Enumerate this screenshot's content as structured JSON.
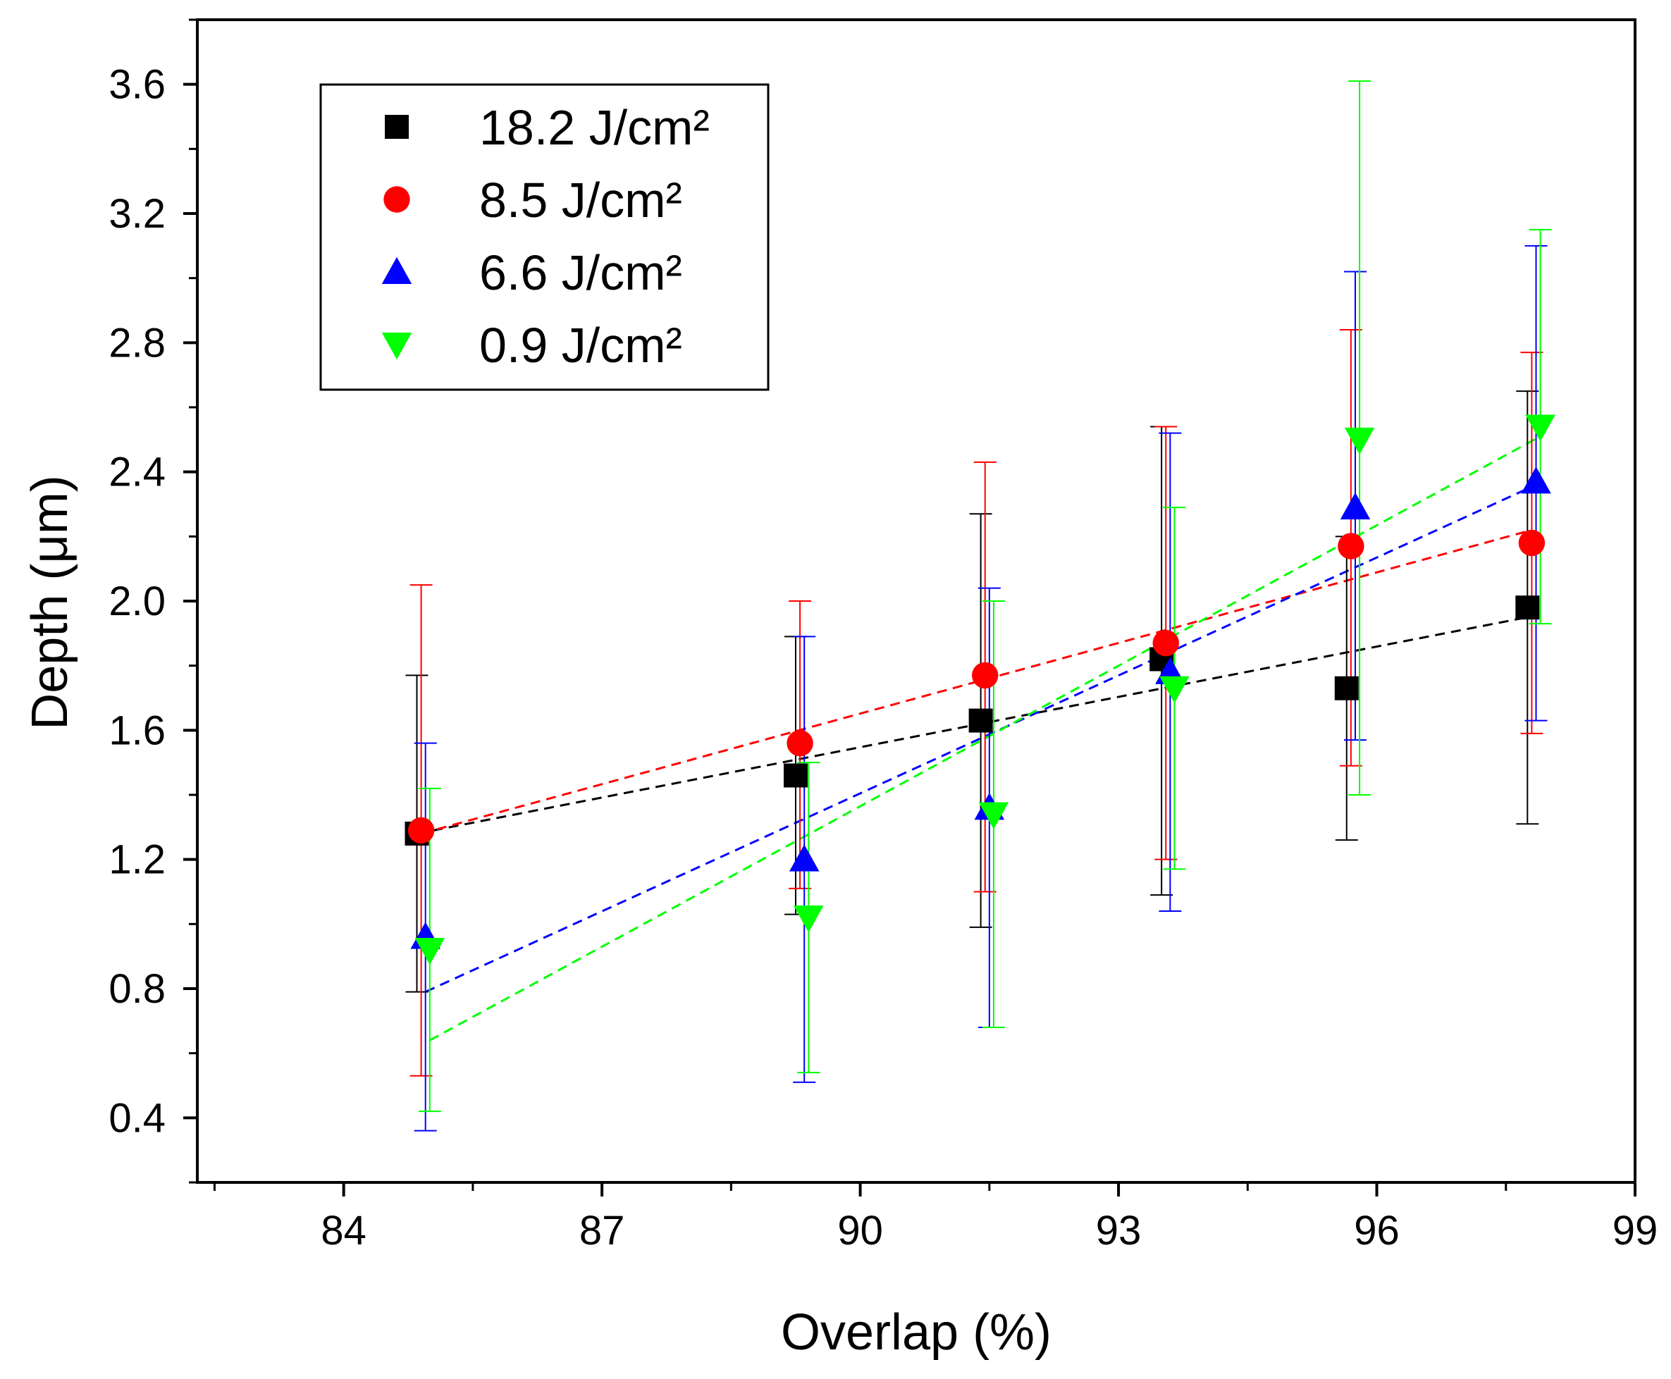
{
  "chart_data": {
    "type": "scatter",
    "title": "",
    "xlabel": "Overlap (%)",
    "ylabel": "Depth (μm)",
    "xlim": [
      82.3,
      99
    ],
    "ylim": [
      0.2,
      3.8
    ],
    "xticks": [
      "84",
      "87",
      "90",
      "93",
      "96",
      "99"
    ],
    "yticks": [
      "0.4",
      "0.8",
      "1.2",
      "1.6",
      "2.0",
      "2.4",
      "2.8",
      "3.2",
      "3.6"
    ],
    "legend_position": "top-left",
    "grid": false,
    "series": [
      {
        "name": "18.2 J/cm²",
        "marker": "square",
        "color": "#000000",
        "points": [
          {
            "x": 84.85,
            "y": 1.28,
            "err_low": 0.79,
            "err_high": 1.77
          },
          {
            "x": 89.25,
            "y": 1.46,
            "err_low": 1.03,
            "err_high": 1.89
          },
          {
            "x": 91.4,
            "y": 1.63,
            "err_low": 0.99,
            "err_high": 2.27
          },
          {
            "x": 93.5,
            "y": 1.82,
            "err_low": 1.09,
            "err_high": 2.54
          },
          {
            "x": 95.65,
            "y": 1.73,
            "err_low": 1.26,
            "err_high": 2.2
          },
          {
            "x": 97.75,
            "y": 1.98,
            "err_low": 1.31,
            "err_high": 2.65
          }
        ],
        "trend": {
          "x": [
            84.85,
            97.75
          ],
          "y": [
            1.28,
            1.95
          ]
        }
      },
      {
        "name": "8.5 J/cm²",
        "marker": "circle",
        "color": "#ff0000",
        "points": [
          {
            "x": 84.9,
            "y": 1.29,
            "err_low": 0.53,
            "err_high": 2.05
          },
          {
            "x": 89.3,
            "y": 1.56,
            "err_low": 1.11,
            "err_high": 2.0
          },
          {
            "x": 91.45,
            "y": 1.77,
            "err_low": 1.1,
            "err_high": 2.43
          },
          {
            "x": 93.55,
            "y": 1.87,
            "err_low": 1.2,
            "err_high": 2.54
          },
          {
            "x": 95.7,
            "y": 2.17,
            "err_low": 1.49,
            "err_high": 2.84
          },
          {
            "x": 97.8,
            "y": 2.18,
            "err_low": 1.59,
            "err_high": 2.77
          }
        ],
        "trend": {
          "x": [
            84.9,
            97.8
          ],
          "y": [
            1.28,
            2.22
          ]
        }
      },
      {
        "name": "6.6 J/cm²",
        "marker": "triangle-up",
        "color": "#0000ff",
        "points": [
          {
            "x": 84.95,
            "y": 0.96,
            "err_low": 0.36,
            "err_high": 1.56
          },
          {
            "x": 89.35,
            "y": 1.2,
            "err_low": 0.51,
            "err_high": 1.89
          },
          {
            "x": 91.5,
            "y": 1.36,
            "err_low": 0.68,
            "err_high": 2.04
          },
          {
            "x": 93.6,
            "y": 1.78,
            "err_low": 1.04,
            "err_high": 2.52
          },
          {
            "x": 95.75,
            "y": 2.29,
            "err_low": 1.57,
            "err_high": 3.02
          },
          {
            "x": 97.85,
            "y": 2.37,
            "err_low": 1.63,
            "err_high": 3.1
          }
        ],
        "trend": {
          "x": [
            84.95,
            97.85
          ],
          "y": [
            0.79,
            2.36
          ]
        }
      },
      {
        "name": "0.9 J/cm²",
        "marker": "triangle-down",
        "color": "#00ff00",
        "points": [
          {
            "x": 85.0,
            "y": 0.92,
            "err_low": 0.42,
            "err_high": 1.42
          },
          {
            "x": 89.4,
            "y": 1.02,
            "err_low": 0.54,
            "err_high": 1.5
          },
          {
            "x": 91.55,
            "y": 1.34,
            "err_low": 0.68,
            "err_high": 2.0
          },
          {
            "x": 93.65,
            "y": 1.73,
            "err_low": 1.17,
            "err_high": 2.29
          },
          {
            "x": 95.8,
            "y": 2.5,
            "err_low": 1.4,
            "err_high": 3.61
          },
          {
            "x": 97.9,
            "y": 2.54,
            "err_low": 1.93,
            "err_high": 3.15
          }
        ],
        "trend": {
          "x": [
            85.0,
            97.9
          ],
          "y": [
            0.64,
            2.51
          ]
        }
      }
    ]
  }
}
